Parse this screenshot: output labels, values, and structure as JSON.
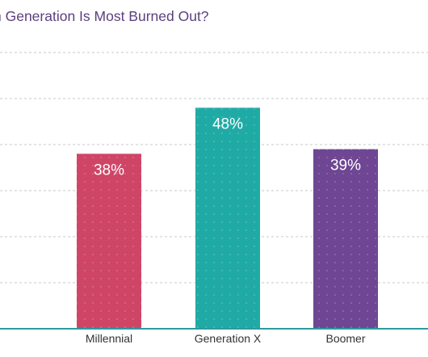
{
  "chart_data": {
    "type": "bar",
    "title": "n Generation Is Most Burned Out?",
    "categories": [
      "Millennial",
      "Generation X",
      "Boomer"
    ],
    "values": [
      38,
      48,
      39
    ],
    "value_labels": [
      "38%",
      "48%",
      "39%"
    ],
    "colors": [
      "#cf4566",
      "#20aaa5",
      "#6e4693"
    ],
    "ylim": [
      0,
      60
    ],
    "grid": true,
    "grid_style": "dashed",
    "axis_color": "#2e9a9e",
    "title_color": "#5b3f7e"
  }
}
